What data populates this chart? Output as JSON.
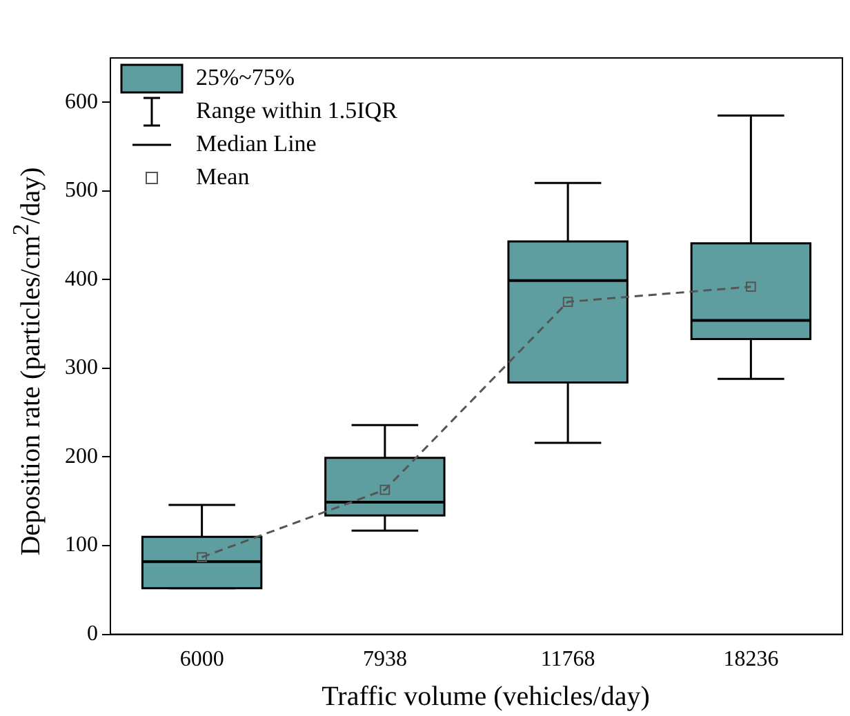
{
  "chart_data": {
    "type": "box",
    "xlabel": "Traffic volume (vehicles/day)",
    "ylabel": "Deposition rate (particles/cm$^{2}$/day)",
    "categories": [
      "6000",
      "7938",
      "11768",
      "18236"
    ],
    "ylim": [
      0,
      650
    ],
    "yticks": [
      0,
      100,
      200,
      300,
      400,
      500,
      600
    ],
    "grid": false,
    "legend": "top left",
    "annotations": [
      "Range within 1.5IQR",
      "Median Line"
    ],
    "series": [
      {
        "name": "25%~75%",
        "color": "#5f9ea0",
        "boxes": [
          {
            "low": 52,
            "q1": 52,
            "median": 82,
            "q3": 110,
            "high": 146
          },
          {
            "low": 117,
            "q1": 134,
            "median": 149,
            "q3": 199,
            "high": 236
          },
          {
            "low": 216,
            "q1": 284,
            "median": 399,
            "q3": 443,
            "high": 509
          },
          {
            "low": 288,
            "q1": 333,
            "median": 354,
            "q3": 441,
            "high": 585
          }
        ]
      },
      {
        "type": "line",
        "name": "Mean",
        "color": "#555555",
        "values": [
          87,
          163,
          375,
          392
        ],
        "marker": "square",
        "line_style": "dashed"
      }
    ]
  }
}
